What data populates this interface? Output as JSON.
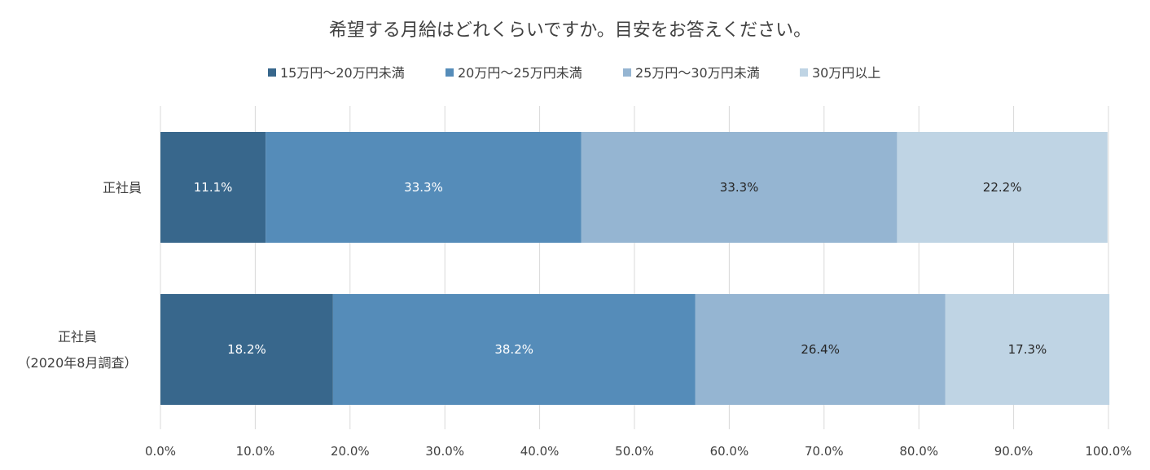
{
  "chart_data": {
    "type": "bar",
    "orientation": "horizontal",
    "stacked": "percent",
    "title": "希望する月給はどれくらいですか。目安をお答えください。",
    "categories": [
      {
        "lines": [
          "正社員"
        ]
      },
      {
        "lines": [
          "正社員",
          "（2020年8月調査）"
        ]
      }
    ],
    "series": [
      {
        "name": "15万円〜20万円未満",
        "color": "#38678c",
        "label_color": "#ffffff",
        "values": [
          11.1,
          18.2
        ]
      },
      {
        "name": "20万円〜25万円未満",
        "color": "#558cb9",
        "label_color": "#ffffff",
        "values": [
          33.3,
          38.2
        ]
      },
      {
        "name": "25万円〜30万円未満",
        "color": "#95b5d2",
        "label_color": "#262626",
        "values": [
          33.3,
          26.4
        ]
      },
      {
        "name": "30万円以上",
        "color": "#bfd4e4",
        "label_color": "#262626",
        "values": [
          22.2,
          17.3
        ]
      }
    ],
    "data_labels": [
      [
        "11.1%",
        "33.3%",
        "33.3%",
        "22.2%"
      ],
      [
        "18.2%",
        "38.2%",
        "26.4%",
        "17.3%"
      ]
    ],
    "xaxis": {
      "range": [
        0,
        100
      ],
      "ticks": [
        0,
        10,
        20,
        30,
        40,
        50,
        60,
        70,
        80,
        90,
        100
      ],
      "tick_labels": [
        "0.0%",
        "10.0%",
        "20.0%",
        "30.0%",
        "40.0%",
        "50.0%",
        "60.0%",
        "70.0%",
        "80.0%",
        "90.0%",
        "100.0%"
      ]
    },
    "grid": "vertical",
    "legend_position": "top",
    "gridline_color": "#d9d9d9"
  }
}
